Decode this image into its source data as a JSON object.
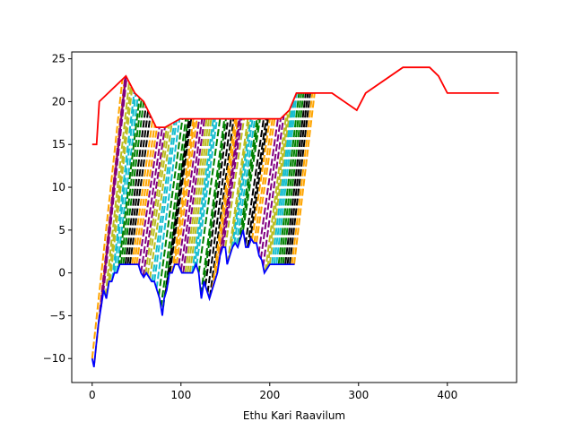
{
  "chart_data": {
    "type": "line",
    "title": "",
    "xlabel": "Ethu Kari Raavilum",
    "ylabel": "",
    "xlim": [
      -23,
      478
    ],
    "ylim": [
      -12.8,
      25.8
    ],
    "xticks": [
      0,
      100,
      200,
      300,
      400
    ],
    "yticks": [
      -10,
      -5,
      0,
      5,
      10,
      15,
      20,
      25
    ],
    "grid": false,
    "legend": "none",
    "colors": {
      "lower_envelope": "#0000ff",
      "upper_envelope": "#ff0000",
      "fill_cycle": [
        "#ffa500",
        "#800080",
        "#bcbd22",
        "#17becf",
        "#008000",
        "#000000"
      ]
    },
    "series": [
      {
        "role": "lower_envelope",
        "x": [
          0,
          2,
          4,
          7,
          10,
          13,
          16,
          19,
          22,
          25,
          28,
          31,
          34,
          37,
          40,
          44,
          48,
          52,
          55,
          58,
          61,
          64,
          67,
          70,
          73,
          76,
          79,
          81,
          84,
          87,
          90,
          93,
          97,
          101,
          105,
          109,
          113,
          117,
          120,
          123,
          126,
          129,
          132,
          135,
          138,
          141,
          144,
          147,
          150,
          152,
          155,
          158,
          161,
          164,
          167,
          170,
          173,
          176,
          179,
          182,
          185,
          188,
          191,
          194,
          197,
          200,
          205,
          212,
          220,
          228
        ],
        "y": [
          -10,
          -11,
          -9,
          -6,
          -4,
          -2,
          -3,
          -1,
          -1,
          0,
          0,
          1,
          1,
          1,
          1,
          1,
          1,
          1,
          0,
          -0.5,
          0,
          -0.5,
          -1,
          -1,
          -2,
          -3,
          -5,
          -3,
          -2,
          0,
          0,
          1,
          1,
          0,
          0,
          0,
          0,
          1,
          0,
          -3,
          -1,
          -2,
          -3,
          -2,
          -1,
          0,
          2,
          3,
          3,
          1,
          2,
          3,
          3.5,
          3,
          4,
          5,
          3,
          3,
          4,
          3.5,
          3.5,
          2,
          1.5,
          0,
          0.5,
          1,
          1,
          1,
          1,
          1
        ]
      },
      {
        "role": "upper_envelope",
        "x": [
          0,
          5,
          8,
          18,
          38,
          48,
          58,
          72,
          82,
          99,
          132,
          140,
          185,
          212,
          222,
          230,
          260,
          270,
          298,
          308,
          350,
          380,
          390,
          400,
          458
        ],
        "y": [
          15,
          15,
          20,
          21,
          23,
          21,
          20,
          17,
          17,
          18,
          18,
          18,
          18,
          18,
          19,
          21,
          21,
          21,
          19,
          21,
          24,
          24,
          23,
          21,
          21
        ]
      }
    ]
  }
}
